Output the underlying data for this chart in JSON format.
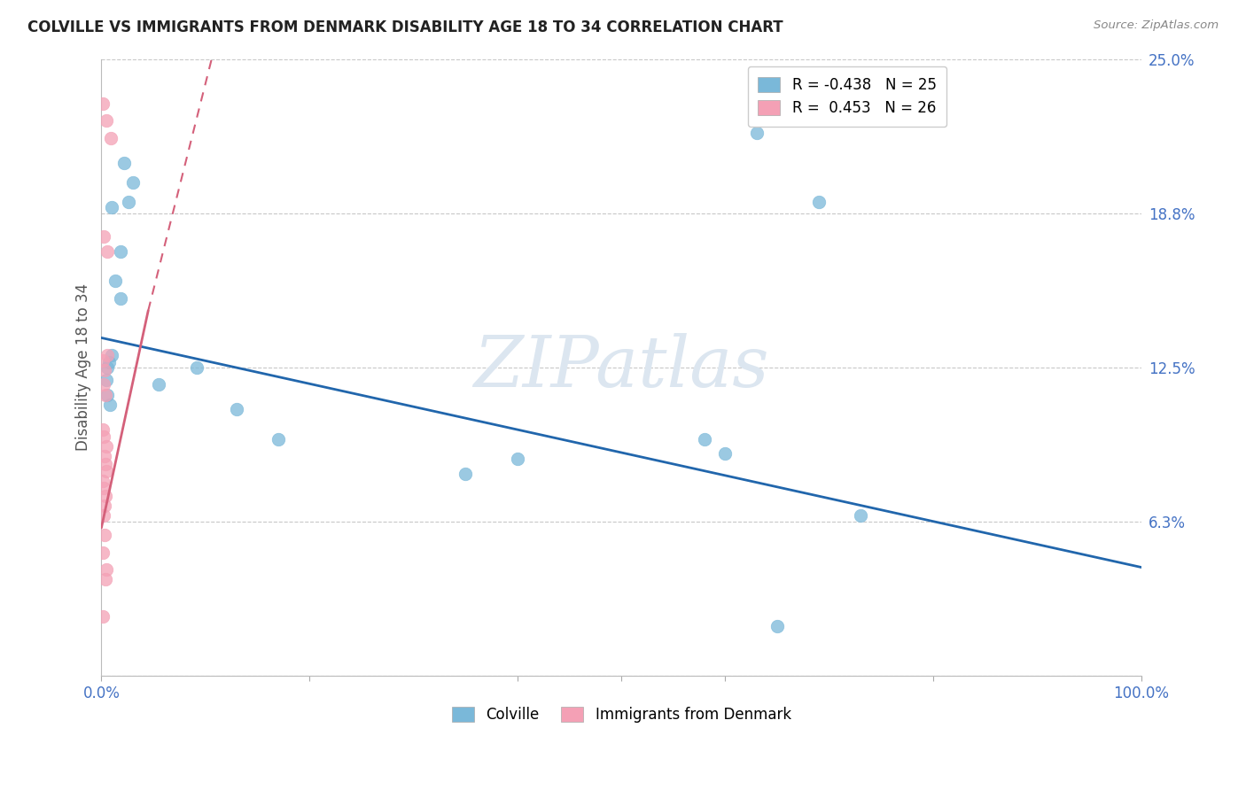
{
  "title": "COLVILLE VS IMMIGRANTS FROM DENMARK DISABILITY AGE 18 TO 34 CORRELATION CHART",
  "source": "Source: ZipAtlas.com",
  "ylabel": "Disability Age 18 to 34",
  "xlim": [
    0,
    1.0
  ],
  "ylim": [
    0,
    0.25
  ],
  "yticks": [
    0.0,
    0.0625,
    0.125,
    0.1875,
    0.25
  ],
  "ytick_labels": [
    "",
    "6.3%",
    "12.5%",
    "18.8%",
    "25.0%"
  ],
  "xtick_positions": [
    0.0,
    0.2,
    0.4,
    0.5,
    0.6,
    0.8,
    1.0
  ],
  "xtick_labels": [
    "0.0%",
    "",
    "",
    "",
    "",
    "",
    "100.0%"
  ],
  "colville_scatter": [
    [
      0.022,
      0.208
    ],
    [
      0.03,
      0.2
    ],
    [
      0.026,
      0.192
    ],
    [
      0.01,
      0.19
    ],
    [
      0.018,
      0.172
    ],
    [
      0.013,
      0.16
    ],
    [
      0.018,
      0.153
    ],
    [
      0.01,
      0.13
    ],
    [
      0.007,
      0.127
    ],
    [
      0.005,
      0.12
    ],
    [
      0.006,
      0.114
    ],
    [
      0.008,
      0.11
    ],
    [
      0.006,
      0.125
    ],
    [
      0.055,
      0.118
    ],
    [
      0.092,
      0.125
    ],
    [
      0.13,
      0.108
    ],
    [
      0.17,
      0.096
    ],
    [
      0.35,
      0.082
    ],
    [
      0.4,
      0.088
    ],
    [
      0.58,
      0.096
    ],
    [
      0.6,
      0.09
    ],
    [
      0.63,
      0.22
    ],
    [
      0.69,
      0.192
    ],
    [
      0.73,
      0.065
    ],
    [
      0.65,
      0.02
    ]
  ],
  "denmark_scatter": [
    [
      0.001,
      0.232
    ],
    [
      0.005,
      0.225
    ],
    [
      0.009,
      0.218
    ],
    [
      0.002,
      0.178
    ],
    [
      0.006,
      0.172
    ],
    [
      0.001,
      0.128
    ],
    [
      0.003,
      0.124
    ],
    [
      0.006,
      0.13
    ],
    [
      0.002,
      0.118
    ],
    [
      0.004,
      0.114
    ],
    [
      0.001,
      0.1
    ],
    [
      0.002,
      0.097
    ],
    [
      0.005,
      0.093
    ],
    [
      0.003,
      0.089
    ],
    [
      0.004,
      0.086
    ],
    [
      0.005,
      0.083
    ],
    [
      0.001,
      0.079
    ],
    [
      0.002,
      0.076
    ],
    [
      0.004,
      0.073
    ],
    [
      0.003,
      0.069
    ],
    [
      0.002,
      0.065
    ],
    [
      0.003,
      0.057
    ],
    [
      0.001,
      0.05
    ],
    [
      0.005,
      0.043
    ],
    [
      0.004,
      0.039
    ],
    [
      0.001,
      0.024
    ]
  ],
  "colville_line": {
    "x": [
      0.0,
      1.0
    ],
    "y": [
      0.137,
      0.044
    ]
  },
  "denmark_line_solid": {
    "x": [
      0.0,
      0.045
    ],
    "y": [
      0.06,
      0.148
    ]
  },
  "denmark_line_dashed": {
    "x": [
      0.045,
      0.115
    ],
    "y": [
      0.148,
      0.265
    ]
  },
  "colville_color": "#7ab8d9",
  "denmark_color": "#f4a0b5",
  "colville_line_color": "#2166ac",
  "denmark_line_color": "#d4607a",
  "background_color": "#ffffff",
  "grid_color": "#c8c8c8",
  "watermark_text": "ZIPatlas",
  "watermark_color": "#dce6f0",
  "legend_blue_label": "R = -0.438   N = 25",
  "legend_pink_label": "R =  0.453   N = 26",
  "bottom_legend_colville": "Colville",
  "bottom_legend_denmark": "Immigrants from Denmark"
}
